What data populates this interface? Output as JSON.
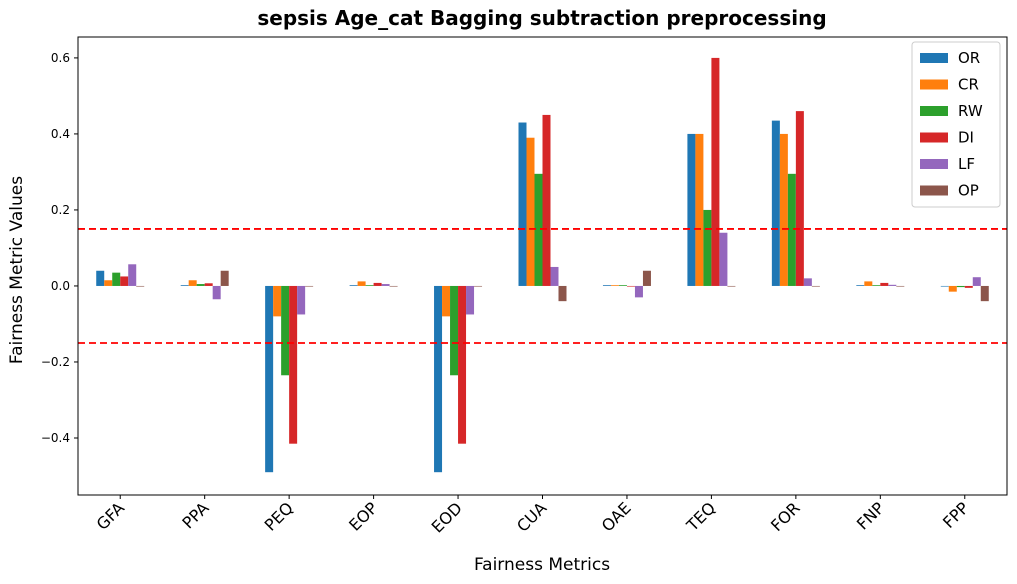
{
  "chart_data": {
    "type": "bar",
    "title": "sepsis Age_cat Bagging subtraction preprocessing",
    "xlabel": "Fairness Metrics",
    "ylabel": "Fairness Metric Values",
    "ylim": [
      -0.55,
      0.655
    ],
    "yticks": [
      -0.4,
      -0.2,
      0.0,
      0.2,
      0.4,
      0.6
    ],
    "ytick_labels": [
      "−0.4",
      "−0.2",
      "0.0",
      "0.2",
      "0.4",
      "0.6"
    ],
    "categories": [
      "GFA",
      "PPA",
      "PEQ",
      "EOP",
      "EOD",
      "CUA",
      "OAE",
      "TEQ",
      "FOR",
      "FNP",
      "FPP"
    ],
    "series": [
      {
        "name": "OR",
        "color": "#1f77b4",
        "values": [
          0.04,
          0.002,
          -0.49,
          0.002,
          -0.49,
          0.43,
          0.002,
          0.4,
          0.435,
          0.002,
          0.0
        ]
      },
      {
        "name": "CR",
        "color": "#ff7f0e",
        "values": [
          0.015,
          0.015,
          -0.08,
          0.012,
          -0.08,
          0.39,
          0.002,
          0.4,
          0.4,
          0.012,
          -0.015
        ]
      },
      {
        "name": "RW",
        "color": "#2ca02c",
        "values": [
          0.035,
          0.005,
          -0.235,
          0.002,
          -0.235,
          0.295,
          0.002,
          0.2,
          0.295,
          0.002,
          -0.003
        ]
      },
      {
        "name": "DI",
        "color": "#d62728",
        "values": [
          0.025,
          0.007,
          -0.415,
          0.008,
          -0.415,
          0.45,
          0.0,
          0.6,
          0.46,
          0.008,
          -0.005
        ]
      },
      {
        "name": "LF",
        "color": "#9467bd",
        "values": [
          0.057,
          -0.035,
          -0.075,
          0.005,
          -0.075,
          0.05,
          -0.03,
          0.14,
          0.02,
          0.003,
          0.023
        ]
      },
      {
        "name": "OP",
        "color": "#8c564b",
        "values": [
          0.0,
          0.04,
          0.0,
          0.0,
          0.0,
          -0.04,
          0.04,
          0.0,
          0.0,
          0.0,
          -0.04
        ]
      }
    ],
    "reference_lines": [
      0.15,
      -0.15
    ],
    "reference_line_color": "#ff0000",
    "grid": false,
    "legend_position": "top-right"
  }
}
